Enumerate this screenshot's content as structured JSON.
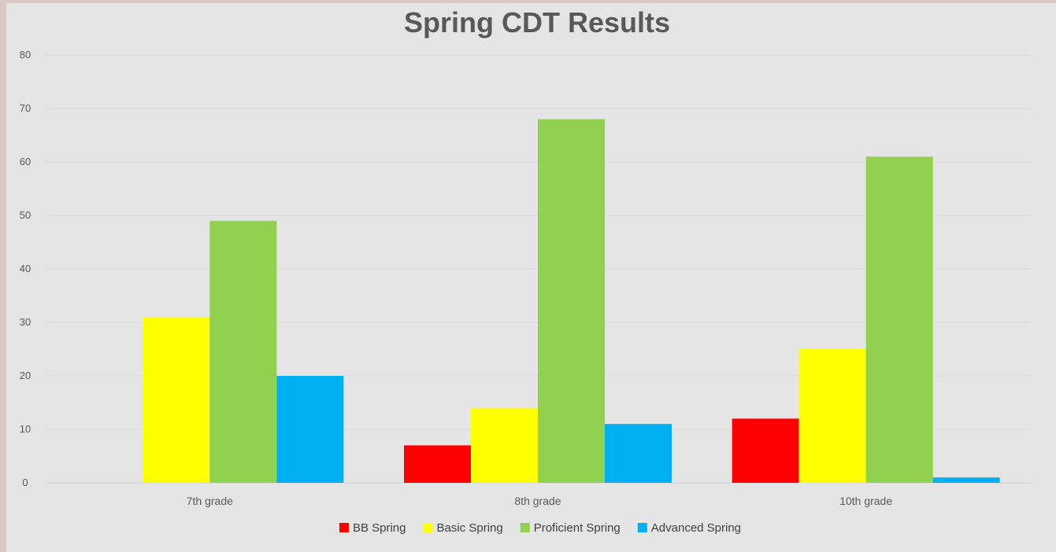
{
  "chart_data": {
    "type": "bar",
    "title": "Spring CDT Results",
    "xlabel": "",
    "ylabel": "",
    "categories": [
      "7th grade",
      "8th grade",
      "10th grade"
    ],
    "series": [
      {
        "name": "BB Spring",
        "color": "#ff0000",
        "values": [
          0,
          7,
          12
        ]
      },
      {
        "name": "Basic Spring",
        "color": "#ffff00",
        "values": [
          31,
          14,
          25
        ]
      },
      {
        "name": "Proficient Spring",
        "color": "#92d050",
        "values": [
          49,
          68,
          61
        ]
      },
      {
        "name": "Advanced Spring",
        "color": "#00b0f0",
        "values": [
          20,
          11,
          1
        ]
      }
    ],
    "ylim": [
      0,
      80
    ],
    "yticks": [
      0,
      10,
      20,
      30,
      40,
      50,
      60,
      70,
      80
    ],
    "grid": true,
    "legend_position": "bottom"
  }
}
